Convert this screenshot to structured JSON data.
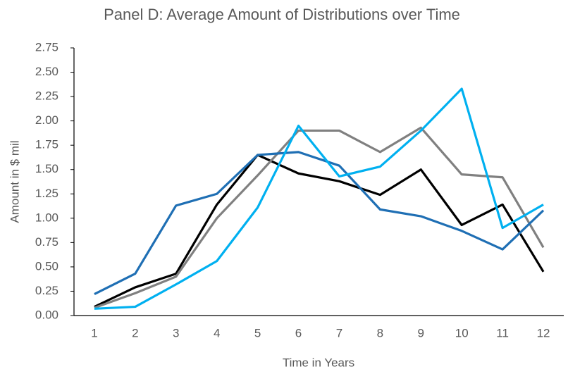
{
  "chart_data": {
    "type": "line",
    "title": "Panel D: Average Amount of Distributions over Time",
    "x_label": "Time in Years",
    "y_label": "Amount in $ mil",
    "categories": [
      1,
      2,
      3,
      4,
      5,
      6,
      7,
      8,
      9,
      10,
      11,
      12
    ],
    "series": [
      {
        "color": "#000000",
        "values": [
          0.09,
          0.29,
          0.43,
          1.14,
          1.65,
          1.46,
          1.38,
          1.24,
          1.5,
          0.93,
          1.14,
          0.45
        ]
      },
      {
        "color": "#808080",
        "values": [
          0.08,
          0.23,
          0.4,
          1.0,
          1.44,
          1.9,
          1.9,
          1.68,
          1.93,
          1.45,
          1.42,
          0.7
        ]
      },
      {
        "color": "#1f6fb4",
        "values": [
          0.22,
          0.43,
          1.13,
          1.25,
          1.65,
          1.68,
          1.54,
          1.09,
          1.02,
          0.87,
          0.68,
          1.08
        ]
      },
      {
        "color": "#00b0f0",
        "values": [
          0.07,
          0.09,
          0.32,
          0.56,
          1.11,
          1.95,
          1.43,
          1.53,
          1.9,
          2.33,
          0.9,
          1.14
        ]
      }
    ],
    "ylim": [
      0,
      2.75
    ],
    "yticks": [
      {
        "value": 0,
        "label": "0.00"
      },
      {
        "value": 0.25,
        "label": "0.25"
      },
      {
        "value": 0.5,
        "label": "0.50"
      },
      {
        "value": 0.75,
        "label": "0.75"
      },
      {
        "value": 1,
        "label": "1.00"
      },
      {
        "value": 1.25,
        "label": "1.25"
      },
      {
        "value": 1.5,
        "label": "1.50"
      },
      {
        "value": 1.75,
        "label": "1.75"
      },
      {
        "value": 2,
        "label": "2.00"
      },
      {
        "value": 2.25,
        "label": "2.25"
      },
      {
        "value": 2.5,
        "label": "2.50"
      },
      {
        "value": 2.75,
        "label": "2.75"
      }
    ],
    "grid": false
  }
}
